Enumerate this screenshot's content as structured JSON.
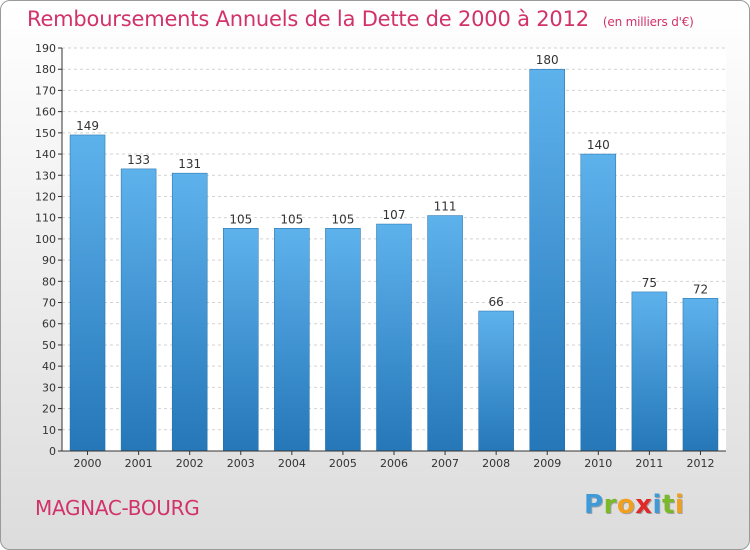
{
  "header": {
    "title": "Remboursements Annuels de la Dette de 2000 à 2012",
    "unit": "(en milliers d'€)"
  },
  "footer": {
    "commune": "MAGNAC-BOURG",
    "logo": [
      "P",
      "r",
      "o",
      "x",
      "i",
      "t",
      "i"
    ],
    "logo_colors": [
      "#3f9ad8",
      "#7cb928",
      "#f0a01e",
      "#e02a2a",
      "#3f9ad8",
      "#7cb928",
      "#f0a01e"
    ]
  },
  "colors": {
    "title": "#d2326a",
    "bar_top": "#5eb2ec",
    "bar_bottom": "#2577b8",
    "axis": "#333333"
  },
  "chart_data": {
    "type": "bar",
    "title": "Remboursements Annuels de la Dette de 2000 à 2012",
    "subtitle": "(en milliers d'€)",
    "xlabel": "",
    "ylabel": "",
    "categories": [
      "2000",
      "2001",
      "2002",
      "2003",
      "2004",
      "2005",
      "2006",
      "2007",
      "2008",
      "2009",
      "2010",
      "2011",
      "2012"
    ],
    "values": [
      149,
      133,
      131,
      105,
      105,
      105,
      107,
      111,
      66,
      180,
      140,
      75,
      72
    ],
    "value_labels": [
      "149",
      "133",
      "131",
      "105",
      "105",
      "105",
      "107",
      "111",
      "66",
      "180",
      "140",
      "75",
      "72"
    ],
    "ylim": [
      0,
      190
    ],
    "yticks": [
      "0",
      "10",
      "20",
      "30",
      "40",
      "50",
      "60",
      "70",
      "80",
      "90",
      "100",
      "110",
      "120",
      "130",
      "140",
      "150",
      "160",
      "170",
      "180",
      "190"
    ],
    "grid": true,
    "legend": "none"
  }
}
